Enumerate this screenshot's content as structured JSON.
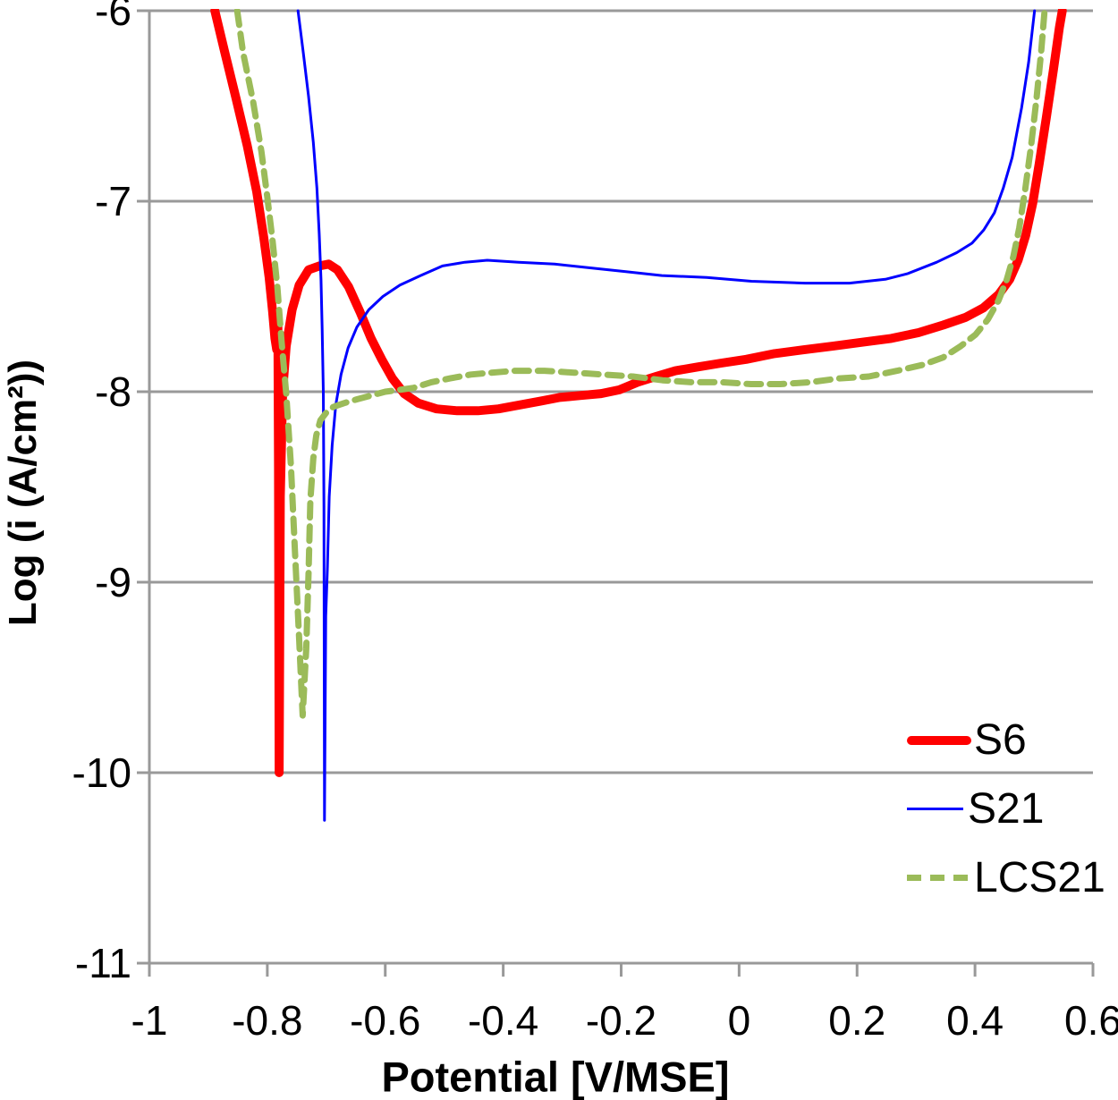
{
  "chart_data": {
    "type": "line",
    "title": "",
    "xlabel": "Potential [V/MSE]",
    "ylabel": "Log (i (A/cm²))",
    "xlim": [
      -1,
      0.6
    ],
    "ylim": [
      -11,
      -6
    ],
    "xtick_values": [
      -1,
      -0.8,
      -0.6,
      -0.4,
      -0.2,
      0,
      0.2,
      0.4,
      0.6
    ],
    "xtick_labels": [
      "-1",
      "-0.8",
      "-0.6",
      "-0.4",
      "-0.2",
      "0",
      "0.2",
      "0.4",
      "0.6"
    ],
    "ytick_values": [
      -6,
      -7,
      -8,
      -9,
      -10,
      -11
    ],
    "ytick_labels": [
      "-6",
      "-7",
      "-8",
      "-9",
      "-10",
      "-11"
    ],
    "grid": "horizontal-gridlines-only",
    "legend_position": "lower-right-inside",
    "colors": {
      "grid": "#999999",
      "axis": "#999999",
      "text": "#000000",
      "background": "#ffffff"
    },
    "series": [
      {
        "name": "S6",
        "color": "#FF0000",
        "style": "solid",
        "width": 10,
        "points": [
          [
            -0.889,
            -6.0
          ],
          [
            -0.872,
            -6.22
          ],
          [
            -0.853,
            -6.46
          ],
          [
            -0.834,
            -6.71
          ],
          [
            -0.818,
            -6.95
          ],
          [
            -0.806,
            -7.19
          ],
          [
            -0.797,
            -7.4
          ],
          [
            -0.791,
            -7.58
          ],
          [
            -0.787,
            -7.72
          ],
          [
            -0.784,
            -7.78
          ],
          [
            -0.782,
            -7.64
          ],
          [
            -0.781,
            -8.4
          ],
          [
            -0.78,
            -10.0
          ],
          [
            -0.778,
            -8.55
          ],
          [
            -0.774,
            -8.0
          ],
          [
            -0.768,
            -7.76
          ],
          [
            -0.758,
            -7.57
          ],
          [
            -0.746,
            -7.44
          ],
          [
            -0.73,
            -7.36
          ],
          [
            -0.712,
            -7.34
          ],
          [
            -0.696,
            -7.33
          ],
          [
            -0.681,
            -7.36
          ],
          [
            -0.662,
            -7.45
          ],
          [
            -0.643,
            -7.58
          ],
          [
            -0.624,
            -7.72
          ],
          [
            -0.606,
            -7.83
          ],
          [
            -0.588,
            -7.93
          ],
          [
            -0.568,
            -8.01
          ],
          [
            -0.544,
            -8.06
          ],
          [
            -0.513,
            -8.09
          ],
          [
            -0.478,
            -8.1
          ],
          [
            -0.443,
            -8.1
          ],
          [
            -0.408,
            -8.09
          ],
          [
            -0.373,
            -8.07
          ],
          [
            -0.338,
            -8.05
          ],
          [
            -0.304,
            -8.03
          ],
          [
            -0.27,
            -8.02
          ],
          [
            -0.234,
            -8.01
          ],
          [
            -0.203,
            -7.99
          ],
          [
            -0.172,
            -7.95
          ],
          [
            -0.141,
            -7.92
          ],
          [
            -0.108,
            -7.89
          ],
          [
            -0.07,
            -7.87
          ],
          [
            -0.03,
            -7.85
          ],
          [
            0.012,
            -7.83
          ],
          [
            0.06,
            -7.8
          ],
          [
            0.11,
            -7.78
          ],
          [
            0.16,
            -7.76
          ],
          [
            0.21,
            -7.74
          ],
          [
            0.258,
            -7.72
          ],
          [
            0.304,
            -7.69
          ],
          [
            0.346,
            -7.65
          ],
          [
            0.384,
            -7.61
          ],
          [
            0.414,
            -7.56
          ],
          [
            0.44,
            -7.49
          ],
          [
            0.459,
            -7.41
          ],
          [
            0.473,
            -7.31
          ],
          [
            0.486,
            -7.18
          ],
          [
            0.498,
            -7.01
          ],
          [
            0.509,
            -6.8
          ],
          [
            0.521,
            -6.56
          ],
          [
            0.533,
            -6.31
          ],
          [
            0.543,
            -6.09
          ],
          [
            0.548,
            -6.0
          ]
        ]
      },
      {
        "name": "S21",
        "color": "#0000FF",
        "style": "solid",
        "width": 3,
        "points": [
          [
            -0.748,
            -6.0
          ],
          [
            -0.739,
            -6.22
          ],
          [
            -0.73,
            -6.45
          ],
          [
            -0.722,
            -6.69
          ],
          [
            -0.716,
            -6.93
          ],
          [
            -0.712,
            -7.17
          ],
          [
            -0.709,
            -7.41
          ],
          [
            -0.707,
            -7.67
          ],
          [
            -0.705,
            -8.0
          ],
          [
            -0.704,
            -8.6
          ],
          [
            -0.703,
            -10.25
          ],
          [
            -0.701,
            -9.18
          ],
          [
            -0.698,
            -8.92
          ],
          [
            -0.695,
            -8.55
          ],
          [
            -0.69,
            -8.28
          ],
          [
            -0.684,
            -8.07
          ],
          [
            -0.675,
            -7.91
          ],
          [
            -0.663,
            -7.77
          ],
          [
            -0.648,
            -7.66
          ],
          [
            -0.628,
            -7.57
          ],
          [
            -0.604,
            -7.5
          ],
          [
            -0.575,
            -7.44
          ],
          [
            -0.54,
            -7.39
          ],
          [
            -0.503,
            -7.34
          ],
          [
            -0.465,
            -7.32
          ],
          [
            -0.427,
            -7.31
          ],
          [
            -0.374,
            -7.32
          ],
          [
            -0.313,
            -7.33
          ],
          [
            -0.253,
            -7.35
          ],
          [
            -0.192,
            -7.37
          ],
          [
            -0.131,
            -7.39
          ],
          [
            -0.055,
            -7.4
          ],
          [
            0.021,
            -7.42
          ],
          [
            0.112,
            -7.43
          ],
          [
            0.187,
            -7.43
          ],
          [
            0.248,
            -7.41
          ],
          [
            0.286,
            -7.38
          ],
          [
            0.335,
            -7.32
          ],
          [
            0.369,
            -7.27
          ],
          [
            0.395,
            -7.22
          ],
          [
            0.415,
            -7.15
          ],
          [
            0.433,
            -7.06
          ],
          [
            0.448,
            -6.93
          ],
          [
            0.463,
            -6.77
          ],
          [
            0.479,
            -6.51
          ],
          [
            0.491,
            -6.27
          ],
          [
            0.501,
            -6.0
          ]
        ]
      },
      {
        "name": "LCS21",
        "color": "#9BBB59",
        "style": "dashed",
        "width": 7,
        "points": [
          [
            -0.851,
            -6.0
          ],
          [
            -0.841,
            -6.22
          ],
          [
            -0.824,
            -6.48
          ],
          [
            -0.81,
            -6.74
          ],
          [
            -0.8,
            -6.98
          ],
          [
            -0.791,
            -7.21
          ],
          [
            -0.783,
            -7.45
          ],
          [
            -0.776,
            -7.73
          ],
          [
            -0.768,
            -8.01
          ],
          [
            -0.76,
            -8.39
          ],
          [
            -0.753,
            -8.85
          ],
          [
            -0.746,
            -9.3
          ],
          [
            -0.74,
            -9.7
          ],
          [
            -0.734,
            -9.35
          ],
          [
            -0.73,
            -8.95
          ],
          [
            -0.727,
            -8.57
          ],
          [
            -0.722,
            -8.35
          ],
          [
            -0.717,
            -8.23
          ],
          [
            -0.71,
            -8.15
          ],
          [
            -0.7,
            -8.11
          ],
          [
            -0.688,
            -8.08
          ],
          [
            -0.67,
            -8.06
          ],
          [
            -0.648,
            -8.04
          ],
          [
            -0.624,
            -8.02
          ],
          [
            -0.6,
            -8.0
          ],
          [
            -0.576,
            -7.99
          ],
          [
            -0.552,
            -7.98
          ],
          [
            -0.522,
            -7.95
          ],
          [
            -0.49,
            -7.93
          ],
          [
            -0.455,
            -7.91
          ],
          [
            -0.42,
            -7.9
          ],
          [
            -0.38,
            -7.89
          ],
          [
            -0.33,
            -7.89
          ],
          [
            -0.28,
            -7.9
          ],
          [
            -0.23,
            -7.91
          ],
          [
            -0.18,
            -7.92
          ],
          [
            -0.13,
            -7.94
          ],
          [
            -0.08,
            -7.95
          ],
          [
            -0.03,
            -7.95
          ],
          [
            0.02,
            -7.96
          ],
          [
            0.07,
            -7.96
          ],
          [
            0.12,
            -7.95
          ],
          [
            0.17,
            -7.93
          ],
          [
            0.22,
            -7.92
          ],
          [
            0.268,
            -7.89
          ],
          [
            0.31,
            -7.86
          ],
          [
            0.346,
            -7.82
          ],
          [
            0.376,
            -7.76
          ],
          [
            0.401,
            -7.7
          ],
          [
            0.422,
            -7.62
          ],
          [
            0.44,
            -7.52
          ],
          [
            0.454,
            -7.41
          ],
          [
            0.465,
            -7.29
          ],
          [
            0.475,
            -7.14
          ],
          [
            0.485,
            -6.94
          ],
          [
            0.495,
            -6.71
          ],
          [
            0.504,
            -6.47
          ],
          [
            0.512,
            -6.22
          ],
          [
            0.518,
            -6.0
          ]
        ]
      }
    ]
  }
}
